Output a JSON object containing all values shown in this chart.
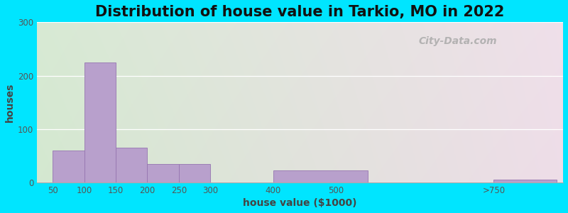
{
  "title": "Distribution of house value in Tarkio, MO in 2022",
  "xlabel": "house value ($1000)",
  "ylabel": "houses",
  "bar_lefts": [
    50,
    100,
    150,
    200,
    250,
    300,
    400,
    600,
    750
  ],
  "bar_widths": [
    50,
    50,
    50,
    50,
    50,
    100,
    150,
    150,
    100
  ],
  "bar_heights": [
    60,
    225,
    65,
    35,
    35,
    0,
    22,
    0,
    5
  ],
  "bar_color": "#b8a0cc",
  "bar_edge_color": "#9575b0",
  "ylim": [
    0,
    300
  ],
  "xlim": [
    25,
    860
  ],
  "yticks": [
    0,
    100,
    200,
    300
  ],
  "xtick_positions": [
    50,
    100,
    150,
    200,
    250,
    300,
    400,
    500,
    750
  ],
  "xtick_labels": [
    "50",
    "100",
    "150",
    "200",
    "250",
    "300",
    "400",
    "500",
    ">750"
  ],
  "background_outer": "#00e5ff",
  "grad_left": "#d4e8d0",
  "grad_right": "#e8e0ec",
  "grad_top": "#f0f8ee",
  "title_fontsize": 15,
  "axis_label_fontsize": 10,
  "watermark_text": "City-Data.com"
}
